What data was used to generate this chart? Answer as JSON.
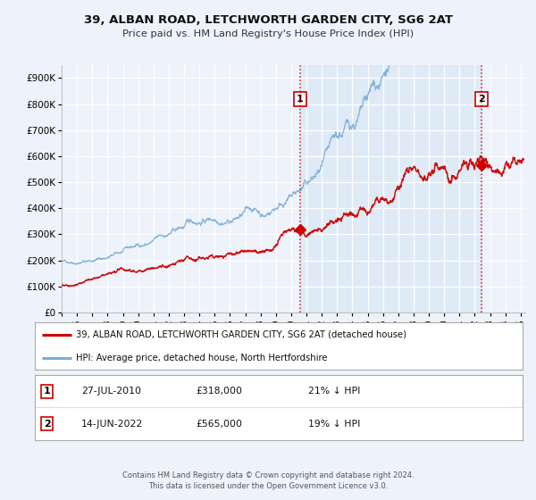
{
  "title_line1": "39, ALBAN ROAD, LETCHWORTH GARDEN CITY, SG6 2AT",
  "title_line2": "Price paid vs. HM Land Registry's House Price Index (HPI)",
  "ylim": [
    0,
    950000
  ],
  "xlim_start": 1995.0,
  "xlim_end": 2025.3,
  "yticks": [
    0,
    100000,
    200000,
    300000,
    400000,
    500000,
    600000,
    700000,
    800000,
    900000
  ],
  "ytick_labels": [
    "£0",
    "£100K",
    "£200K",
    "£300K",
    "£400K",
    "£500K",
    "£600K",
    "£700K",
    "£800K",
    "£900K"
  ],
  "xticks": [
    1995,
    1996,
    1997,
    1998,
    1999,
    2000,
    2001,
    2002,
    2003,
    2004,
    2005,
    2006,
    2007,
    2008,
    2009,
    2010,
    2011,
    2012,
    2013,
    2014,
    2015,
    2016,
    2017,
    2018,
    2019,
    2020,
    2021,
    2022,
    2023,
    2024,
    2025
  ],
  "background_color": "#eef2fb",
  "plot_bg_color": "#eef2fb",
  "grid_color": "#ffffff",
  "red_line_color": "#cc0000",
  "blue_line_color": "#7aadd4",
  "sale1_x": 2010.57,
  "sale1_y": 318000,
  "sale2_x": 2022.45,
  "sale2_y": 565000,
  "vline_color": "#cc0000",
  "shade_color": "#d8e8f5",
  "legend_red_label": "39, ALBAN ROAD, LETCHWORTH GARDEN CITY, SG6 2AT (detached house)",
  "legend_blue_label": "HPI: Average price, detached house, North Hertfordshire",
  "annotation1_date": "27-JUL-2010",
  "annotation1_price": "£318,000",
  "annotation1_hpi": "21% ↓ HPI",
  "annotation2_date": "14-JUN-2022",
  "annotation2_price": "£565,000",
  "annotation2_hpi": "19% ↓ HPI",
  "footer": "Contains HM Land Registry data © Crown copyright and database right 2024.\nThis data is licensed under the Open Government Licence v3.0."
}
